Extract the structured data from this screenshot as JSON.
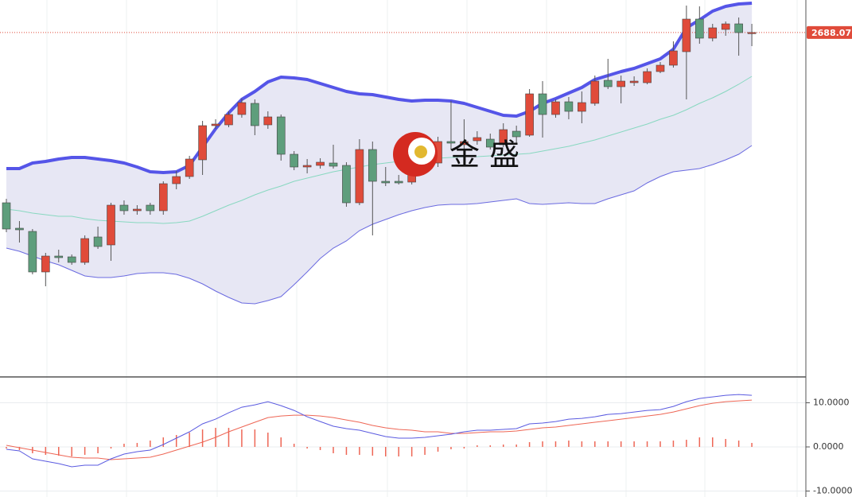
{
  "chart_data": [
    {
      "type": "candlestick",
      "ylim": [
        2472,
        2708.5
      ],
      "price_label": 2688.07,
      "price_label_color": "#e04b3a",
      "up_color": "#e04b3a",
      "down_color": "#5e9e7c",
      "open": [
        2581,
        2565,
        2563,
        2537.5,
        2547.5,
        2547,
        2543.5,
        2559.5,
        2554.5,
        2579.5,
        2576,
        2579.5,
        2576,
        2593,
        2597.5,
        2608,
        2629.5,
        2630,
        2636.5,
        2643.5,
        2630,
        2635,
        2611.5,
        2603.5,
        2604.5,
        2606,
        2604.5,
        2581,
        2614.5,
        2594.5,
        2594.5,
        2594,
        2603.5,
        2606,
        2619.5,
        2617.5,
        2620,
        2621,
        2617.5,
        2626,
        2623.5,
        2649.5,
        2636.5,
        2644.5,
        2638.5,
        2643.5,
        2658,
        2654,
        2656.5,
        2656.5,
        2663.5,
        2667.5,
        2676,
        2696.5,
        2684.5,
        2690,
        2693.5,
        2687.5
      ],
      "high": [
        2583.5,
        2569.5,
        2564.5,
        2549.5,
        2551.5,
        2548.5,
        2560.5,
        2566,
        2581,
        2582.5,
        2579.5,
        2581,
        2594.5,
        2601,
        2610.5,
        2632.5,
        2633.5,
        2638.5,
        2646.5,
        2646,
        2638.5,
        2636.5,
        2613.5,
        2608.5,
        2609,
        2617.5,
        2606.5,
        2621,
        2619.5,
        2603.5,
        2598.5,
        2611,
        2618.5,
        2622.5,
        2645,
        2633.5,
        2626,
        2624.5,
        2631,
        2629.5,
        2652.5,
        2657.5,
        2646,
        2647.5,
        2651,
        2661,
        2671.5,
        2661,
        2660.5,
        2665.5,
        2669.5,
        2682.5,
        2705,
        2704.5,
        2693.5,
        2695,
        2697.5,
        2693.5
      ],
      "low": [
        2562.5,
        2556,
        2536,
        2528.5,
        2543.5,
        2542,
        2542,
        2552,
        2544.5,
        2573.5,
        2573.5,
        2573.5,
        2573.5,
        2589.5,
        2596,
        2598.5,
        2627.5,
        2628.5,
        2634.5,
        2623.5,
        2627.5,
        2607.5,
        2601.5,
        2599.5,
        2602.5,
        2602.5,
        2578.5,
        2579.5,
        2560.5,
        2591.5,
        2592.5,
        2592.5,
        2601,
        2603.5,
        2614.5,
        2613.5,
        2617.5,
        2614.5,
        2616,
        2618.5,
        2622.5,
        2622,
        2634.5,
        2633.5,
        2631,
        2642,
        2652.5,
        2643.5,
        2654.5,
        2655.5,
        2662.5,
        2666,
        2646,
        2681,
        2682.5,
        2686,
        2673.5,
        2679.5
      ],
      "close": [
        2564.5,
        2564,
        2537.5,
        2547.5,
        2546.5,
        2543.5,
        2558.5,
        2553.5,
        2579.5,
        2576,
        2577,
        2576,
        2593,
        2597.5,
        2608.5,
        2629.5,
        2630.5,
        2636.5,
        2644,
        2629.5,
        2635,
        2611.5,
        2603.5,
        2604.5,
        2606.5,
        2604,
        2581,
        2614.5,
        2594.5,
        2593.5,
        2593.5,
        2603.5,
        2611,
        2619.5,
        2618.5,
        2619.5,
        2622,
        2616,
        2627,
        2622.5,
        2649.5,
        2636.5,
        2644.5,
        2638.5,
        2644,
        2657.5,
        2654,
        2657.5,
        2657.5,
        2663.5,
        2667.5,
        2676.5,
        2696.5,
        2684.5,
        2691,
        2693.5,
        2688,
        2688.07
      ],
      "upper": [
        2602.5,
        2602.5,
        2606,
        2607,
        2608.5,
        2609.5,
        2609.5,
        2608.5,
        2607.5,
        2606,
        2603.5,
        2600.5,
        2600,
        2600.5,
        2604.5,
        2616,
        2627.5,
        2637.5,
        2646,
        2651,
        2657,
        2660,
        2659.5,
        2658.5,
        2656,
        2653.5,
        2651,
        2649.5,
        2649,
        2647.5,
        2646,
        2645,
        2645.5,
        2645.5,
        2645,
        2643.5,
        2641,
        2638.5,
        2636,
        2635.5,
        2638.5,
        2643.5,
        2646.5,
        2650,
        2653.5,
        2658.5,
        2661,
        2663.5,
        2665.5,
        2668.5,
        2671.5,
        2677.5,
        2691,
        2696,
        2701.5,
        2704.5,
        2706,
        2706.5
      ],
      "middle": [
        2577,
        2576,
        2574.5,
        2573.5,
        2572.5,
        2572.5,
        2571,
        2570,
        2569.5,
        2569,
        2568.5,
        2568.5,
        2568,
        2568.5,
        2569.5,
        2572.5,
        2576,
        2579.5,
        2582.5,
        2586,
        2589,
        2591.5,
        2594.5,
        2596.5,
        2598.5,
        2600.5,
        2602,
        2603.5,
        2605,
        2606,
        2607,
        2608,
        2608.5,
        2609,
        2609.5,
        2610,
        2610,
        2610.5,
        2611,
        2611.5,
        2612,
        2613.5,
        2615,
        2616.5,
        2618.5,
        2620.5,
        2623,
        2625.5,
        2628,
        2630.5,
        2633.5,
        2636,
        2639.5,
        2643.5,
        2647,
        2651,
        2655.5,
        2660.5
      ],
      "lower": [
        2552.5,
        2550.5,
        2547.5,
        2544.5,
        2542,
        2538.5,
        2535,
        2534,
        2534,
        2535,
        2536.5,
        2537,
        2537,
        2536,
        2533.5,
        2530,
        2525.5,
        2521.5,
        2518,
        2517.5,
        2519.5,
        2522,
        2529.5,
        2537.5,
        2546,
        2552.5,
        2557,
        2563.5,
        2567.5,
        2570.5,
        2573.5,
        2576,
        2578,
        2579.5,
        2580,
        2580,
        2580.5,
        2581.5,
        2582.5,
        2583.5,
        2580.5,
        2580,
        2580.5,
        2581,
        2580.5,
        2580.5,
        2583.5,
        2586,
        2588.5,
        2593.5,
        2597.5,
        2600.5,
        2601.5,
        2602.5,
        2605,
        2608,
        2611.5,
        2617
      ],
      "upper_color": "#5555e8",
      "middle_color": "#88d8c0",
      "lower_color": "#6a6ae0",
      "band_fill": "#e7e7f4"
    },
    {
      "type": "macd",
      "ylim": [
        -11.35,
        15.5
      ],
      "yticks": [
        {
          "value": 10,
          "label": "10.0000"
        },
        {
          "value": 0,
          "label": "0.0000"
        },
        {
          "value": -10,
          "label": "-10.0000"
        }
      ],
      "dif": [
        -0.54,
        -0.9,
        -2.7,
        -3.24,
        -3.78,
        -4.5,
        -4.14,
        -4.14,
        -2.7,
        -1.62,
        -1.08,
        -0.72,
        0.54,
        1.98,
        3.42,
        5.22,
        6.3,
        7.74,
        9,
        9.54,
        10.26,
        9.36,
        8.28,
        6.84,
        5.76,
        4.68,
        4.14,
        3.78,
        3.06,
        2.34,
        1.98,
        1.98,
        2.16,
        2.52,
        2.88,
        3.42,
        3.78,
        3.78,
        3.96,
        4.14,
        5.22,
        5.4,
        5.76,
        6.3,
        6.48,
        6.84,
        7.38,
        7.56,
        7.92,
        8.28,
        8.46,
        9.18,
        10.26,
        10.98,
        11.34,
        11.7,
        11.88,
        11.7
      ],
      "dea": [
        0.36,
        -0.18,
        -0.72,
        -1.26,
        -1.8,
        -2.34,
        -2.52,
        -2.52,
        -2.88,
        -2.7,
        -2.52,
        -2.34,
        -1.62,
        -0.72,
        0.18,
        1.08,
        2.16,
        3.42,
        4.5,
        5.58,
        6.66,
        7.02,
        7.2,
        7.2,
        7.02,
        6.66,
        6.12,
        5.58,
        4.86,
        4.32,
        3.96,
        3.78,
        3.42,
        3.42,
        3.06,
        3.06,
        3.24,
        3.42,
        3.42,
        3.6,
        3.96,
        4.32,
        4.5,
        4.86,
        5.22,
        5.58,
        5.94,
        6.3,
        6.66,
        7.02,
        7.38,
        7.92,
        8.64,
        9.36,
        9.9,
        10.26,
        10.44,
        10.62
      ],
      "histogram": [
        -0.36,
        -0.72,
        -1.44,
        -1.8,
        -1.98,
        -2.16,
        -1.8,
        -1.44,
        -0.36,
        0.72,
        0.9,
        1.44,
        2.16,
        2.7,
        3.24,
        3.96,
        4.32,
        4.32,
        3.96,
        3.96,
        3.24,
        2.16,
        0.72,
        -0.36,
        -0.72,
        -1.44,
        -1.8,
        -1.8,
        -1.98,
        -2.16,
        -2.16,
        -2.16,
        -1.8,
        -1.08,
        -0.54,
        -0.36,
        0.36,
        0.36,
        0.54,
        0.54,
        1.08,
        1.26,
        1.26,
        1.44,
        1.26,
        1.26,
        1.26,
        1.26,
        1.26,
        1.26,
        1.26,
        1.44,
        1.62,
        2.16,
        2.16,
        1.8,
        1.44,
        0.9
      ],
      "dif_color": "#5a5ae0",
      "dea_color": "#ee6655",
      "histogram_color": "#ee6655",
      "grid": true
    }
  ],
  "watermark": "金 盛"
}
